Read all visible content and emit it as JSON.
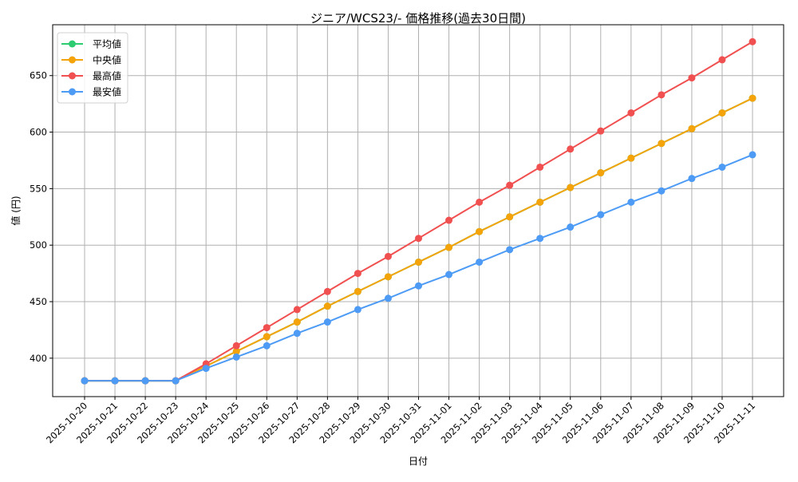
{
  "chart_data": {
    "type": "line",
    "title": "ジニア/WCS23/- 価格推移(過去30日間)",
    "xlabel": "日付",
    "ylabel": "値 (円)",
    "ylim": [
      366,
      695
    ],
    "yticks": [
      400,
      450,
      500,
      550,
      600,
      650
    ],
    "grid": true,
    "legend_position": "upper left",
    "x": [
      "2025-10-20",
      "2025-10-21",
      "2025-10-22",
      "2025-10-23",
      "2025-10-24",
      "2025-10-25",
      "2025-10-26",
      "2025-10-27",
      "2025-10-28",
      "2025-10-29",
      "2025-10-30",
      "2025-10-31",
      "2025-11-01",
      "2025-11-02",
      "2025-11-03",
      "2025-11-04",
      "2025-11-05",
      "2025-11-06",
      "2025-11-07",
      "2025-11-08",
      "2025-11-09",
      "2025-11-10",
      "2025-11-11"
    ],
    "series": [
      {
        "name": "平均値",
        "color": "#2ecc71",
        "values": [
          380,
          380,
          380,
          380,
          393,
          406,
          419,
          432,
          446,
          459,
          472,
          485,
          498,
          512,
          525,
          538,
          551,
          564,
          577,
          590,
          603,
          617,
          630
        ]
      },
      {
        "name": "中央値",
        "color": "#f5a30a",
        "values": [
          380,
          380,
          380,
          380,
          393,
          406,
          419,
          432,
          446,
          459,
          472,
          485,
          498,
          512,
          525,
          538,
          551,
          564,
          577,
          590,
          603,
          617,
          630
        ]
      },
      {
        "name": "最高値",
        "color": "#f05050",
        "values": [
          380,
          380,
          380,
          380,
          395,
          411,
          427,
          443,
          459,
          475,
          490,
          506,
          522,
          538,
          553,
          569,
          585,
          601,
          617,
          633,
          648,
          664,
          680
        ]
      },
      {
        "name": "最安値",
        "color": "#4d9bf5",
        "values": [
          380,
          380,
          380,
          380,
          391,
          401,
          411,
          422,
          432,
          443,
          453,
          464,
          474,
          485,
          496,
          506,
          516,
          527,
          538,
          548,
          559,
          569,
          580
        ]
      }
    ]
  }
}
